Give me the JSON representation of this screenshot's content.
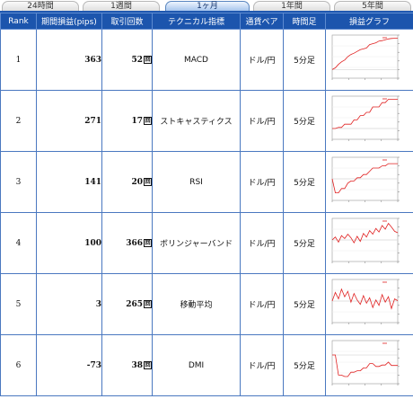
{
  "tabs": [
    {
      "label": "24時間",
      "active": false
    },
    {
      "label": "1週間",
      "active": false
    },
    {
      "label": "1ヶ月",
      "active": true
    },
    {
      "label": "1年間",
      "active": false
    },
    {
      "label": "5年間",
      "active": false
    }
  ],
  "columns": [
    "Rank",
    "期間損益(pips)",
    "取引回数",
    "テクニカル指標",
    "通貨ペア",
    "時間足",
    "損益グラフ"
  ],
  "trade_unit": "回",
  "rows": [
    {
      "rank": "1",
      "pips": "363",
      "trades": "52",
      "indicator": "MACD",
      "pair": "ドル/円",
      "timeframe": "5分足",
      "graph": {
        "ylim": [
          -100,
          400
        ],
        "values": [
          0,
          20,
          60,
          90,
          110,
          150,
          175,
          190,
          210,
          230,
          240,
          250,
          290,
          300,
          310,
          330,
          335,
          345,
          355,
          360,
          363,
          363
        ]
      }
    },
    {
      "rank": "2",
      "pips": "271",
      "trades": "17",
      "indicator": "ストキャスティクス",
      "pair": "ドル/円",
      "timeframe": "5分足",
      "graph": {
        "ylim": [
          -100,
          300
        ],
        "values": [
          0,
          0,
          10,
          10,
          40,
          40,
          40,
          80,
          80,
          120,
          120,
          150,
          150,
          200,
          200,
          200,
          240,
          240,
          271,
          271,
          271,
          271
        ]
      }
    },
    {
      "rank": "3",
      "pips": "141",
      "trades": "20",
      "indicator": "RSI",
      "pair": "ドル/円",
      "timeframe": "5分足",
      "graph": {
        "ylim": [
          -200,
          200
        ],
        "values": [
          0,
          -130,
          -130,
          -90,
          -90,
          -40,
          -20,
          -20,
          10,
          10,
          40,
          40,
          70,
          100,
          100,
          100,
          120,
          120,
          141,
          141,
          141,
          141
        ]
      }
    },
    {
      "rank": "4",
      "pips": "100",
      "trades": "366",
      "indicator": "ボリンジャーバンド",
      "pair": "ドル/円",
      "timeframe": "5分足",
      "graph": {
        "ylim": [
          -300,
          300
        ],
        "values": [
          0,
          40,
          -30,
          60,
          20,
          80,
          30,
          -40,
          50,
          -20,
          90,
          40,
          130,
          80,
          160,
          110,
          200,
          150,
          230,
          180,
          120,
          100
        ]
      }
    },
    {
      "rank": "5",
      "pips": "3",
      "trades": "265",
      "indicator": "移動平均",
      "pair": "ドル/円",
      "timeframe": "5分足",
      "graph": {
        "ylim": [
          -200,
          200
        ],
        "values": [
          0,
          80,
          20,
          110,
          40,
          90,
          -10,
          70,
          10,
          -30,
          50,
          -20,
          30,
          -60,
          10,
          -40,
          60,
          -10,
          40,
          -70,
          20,
          3
        ]
      }
    },
    {
      "rank": "6",
      "pips": "-73",
      "trades": "38",
      "indicator": "DMI",
      "pair": "ドル/円",
      "timeframe": "5分足",
      "graph": {
        "ylim": [
          -200,
          100
        ],
        "values": [
          0,
          0,
          -140,
          -140,
          -150,
          -150,
          -120,
          -120,
          -110,
          -110,
          -90,
          -90,
          -60,
          -60,
          -80,
          -80,
          -70,
          -70,
          -50,
          -73,
          -73,
          -73
        ]
      }
    }
  ],
  "colors": {
    "header_bg": "#1c55ad",
    "line": "#e02020",
    "border": "#4a78c0"
  }
}
